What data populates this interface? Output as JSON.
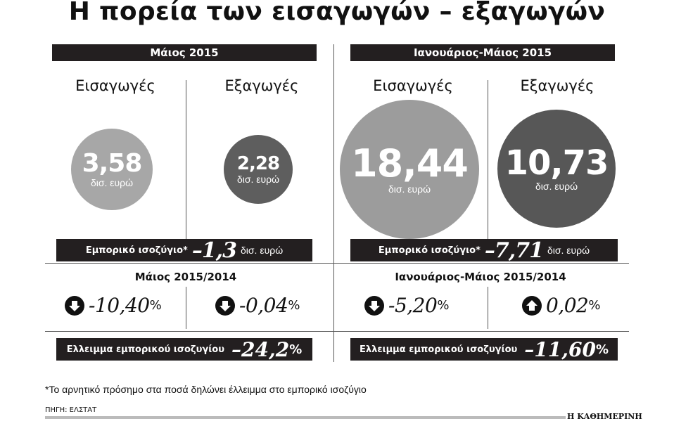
{
  "title": "Η πορεία των εισαγωγών – εξαγωγών",
  "left_panel": {
    "header": "Μάιος 2015",
    "imports_label": "Εισαγωγές",
    "exports_label": "Εξαγωγές",
    "imports_value": "3,58",
    "imports_unit": "δισ. ευρώ",
    "exports_value": "2,28",
    "exports_unit": "δισ. ευρώ",
    "balance_label": "Εμπορικό ισοζύγιο*",
    "balance_value": "–1,3",
    "balance_unit": "δισ. ευρώ",
    "compare_label": "Μάιος 2015/2014",
    "imports_change": "-10,40",
    "imports_change_unit": "%",
    "imports_change_dir": "down",
    "exports_change": "-0,04",
    "exports_change_unit": "%",
    "exports_change_dir": "down",
    "deficit_label": "Ελλειμμα εμπορικού ισοζυγίου",
    "deficit_value": "–24,2",
    "deficit_unit": "%"
  },
  "right_panel": {
    "header": "Ιανουάριος-Μάιος 2015",
    "imports_label": "Εισαγωγές",
    "exports_label": "Εξαγωγές",
    "imports_value": "18,44",
    "imports_unit": "δισ. ευρώ",
    "exports_value": "10,73",
    "exports_unit": "δισ. ευρώ",
    "balance_label": "Εμπορικό ισοζύγιο*",
    "balance_value": "–7,71",
    "balance_unit": "δισ. ευρώ",
    "compare_label": "Ιανουάριος-Μάιος 2015/2014",
    "imports_change": "-5,20",
    "imports_change_unit": "%",
    "imports_change_dir": "down",
    "exports_change": "0,02",
    "exports_change_unit": "%",
    "exports_change_dir": "up",
    "deficit_label": "Ελλειμμα εμπορικού ισοζυγίου",
    "deficit_value": "–11,60",
    "deficit_unit": "%"
  },
  "footnote": "*Το αρνητικό πρόσημο στα ποσά δηλώνει έλλειμμα στο εμπορικό ισοζύγιο",
  "source": "ΠΗΓΗ: ΕΛΣΤΑΤ",
  "brand": "Η ΚΑΘΗΜΕΡΙΝΗ",
  "colors": {
    "dark_bar": "#231f20",
    "circle_light": "#a7a7a7",
    "circle_dark": "#5e5e5e",
    "circle_big_light": "#9c9c9c",
    "circle_big_dark": "#575757"
  }
}
